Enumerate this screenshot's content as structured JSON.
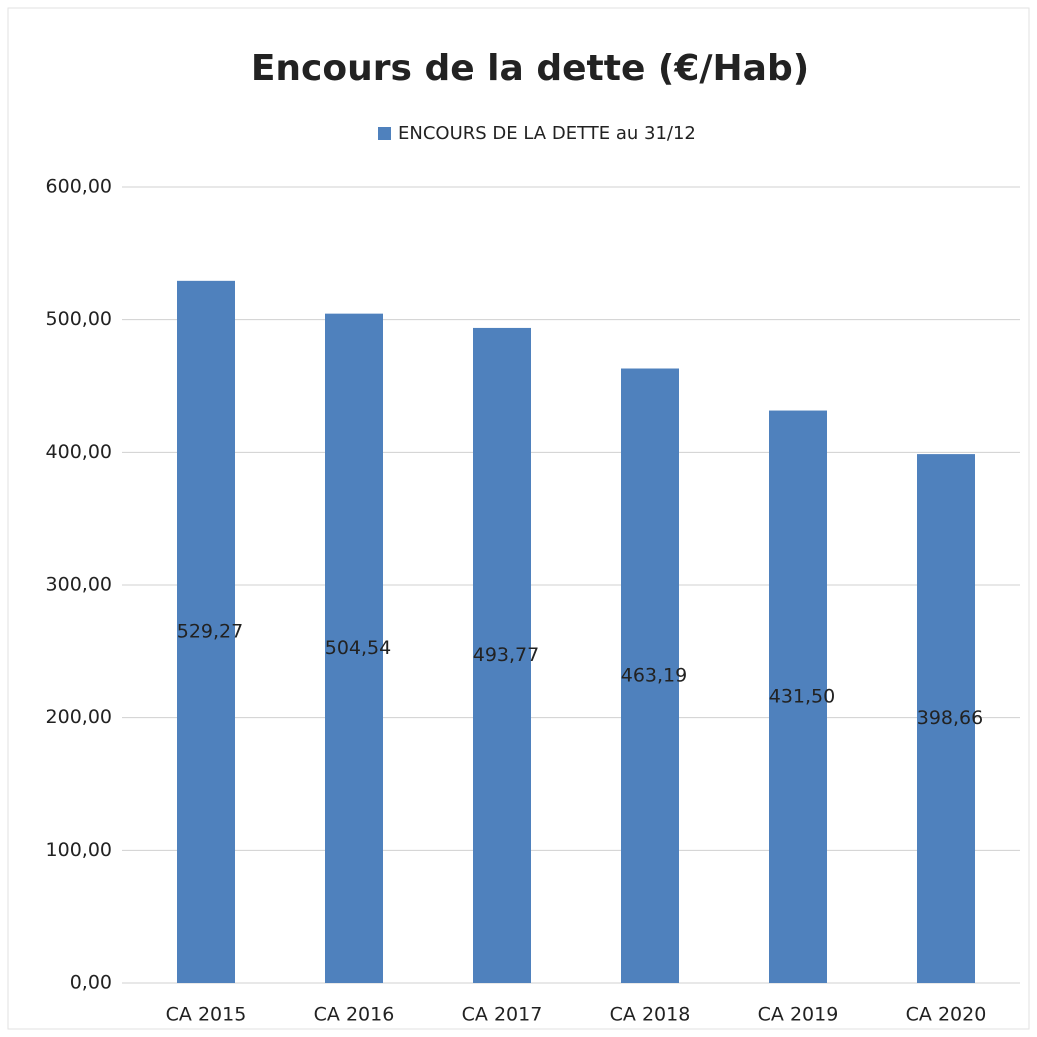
{
  "chart_data": {
    "type": "bar",
    "title": "Encours de la dette (€/Hab)",
    "series": [
      {
        "name": "ENCOURS DE LA DETTE au 31/12",
        "color": "#4f81bd",
        "values": [
          529.27,
          504.54,
          493.77,
          463.19,
          431.5,
          398.66
        ],
        "value_labels": [
          "529,27",
          "504,54",
          "493,77",
          "463,19",
          "431,50",
          "398,66"
        ]
      }
    ],
    "categories": [
      "CA 2015",
      "CA 2016",
      "CA 2017",
      "CA 2018",
      "CA 2019",
      "CA 2020"
    ],
    "ylim": [
      0,
      600
    ],
    "yticks": [
      {
        "value": 0,
        "label": "0,00"
      },
      {
        "value": 100,
        "label": "100,00"
      },
      {
        "value": 200,
        "label": "200,00"
      },
      {
        "value": 300,
        "label": "300,00"
      },
      {
        "value": 400,
        "label": "400,00"
      },
      {
        "value": 500,
        "label": "500,00"
      },
      {
        "value": 600,
        "label": "600,00"
      }
    ],
    "grid": true,
    "legend": "top"
  }
}
